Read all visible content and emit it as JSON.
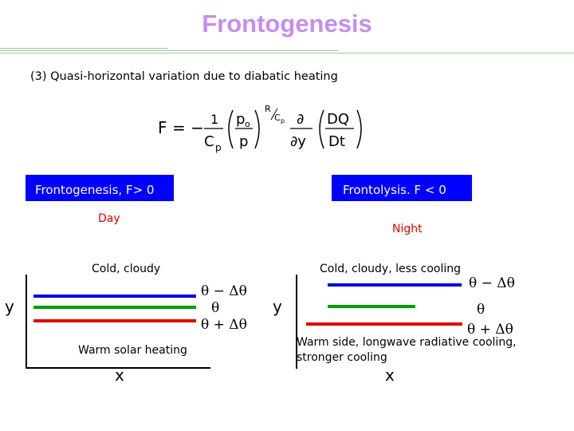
{
  "title": "Frontogenesis",
  "subtitle": "(3) Quasi-horizontal variation due to diabatic heating",
  "equation": {
    "F": "F",
    "equals_minus": "= −",
    "one": "1",
    "cp": "C",
    "cp_sub": "p",
    "po": "p",
    "po_sub": "o",
    "p": "p",
    "exponent": "R",
    "exponent_den": "C",
    "exponent_den_sub": "p",
    "partial_num": "∂",
    "partial_den": "∂y",
    "dq": "DQ",
    "dt": "Dt"
  },
  "left_panel": {
    "box_label": "Frontogenesis, F> 0",
    "period": "Day",
    "top_label": "Cold, cloudy",
    "bottom_label": "Warm solar heating",
    "y_axis": "y",
    "x_axis": "x",
    "theta_top": "θ − Δθ",
    "theta_mid": "θ",
    "theta_bottom": "θ + Δθ"
  },
  "right_panel": {
    "box_label": "Frontolysis. F < 0",
    "period": "Night",
    "top_label": "Cold, cloudy, less cooling",
    "bottom_label_line1": "Warm side, longwave radiative cooling,",
    "bottom_label_line2": "stronger cooling",
    "y_axis": "y",
    "x_axis": "x",
    "theta_top": "θ − Δθ",
    "theta_mid": "θ",
    "theta_bottom": "θ + Δθ"
  },
  "colors": {
    "title": "#c58ef0",
    "box": "#0000ff",
    "day_night": "#e00000",
    "line_blue": "#0000e0",
    "line_green": "#00a000",
    "line_red": "#e00000",
    "rule_green": "#8fcf8f",
    "rule_gray": "#b0b0b0"
  }
}
